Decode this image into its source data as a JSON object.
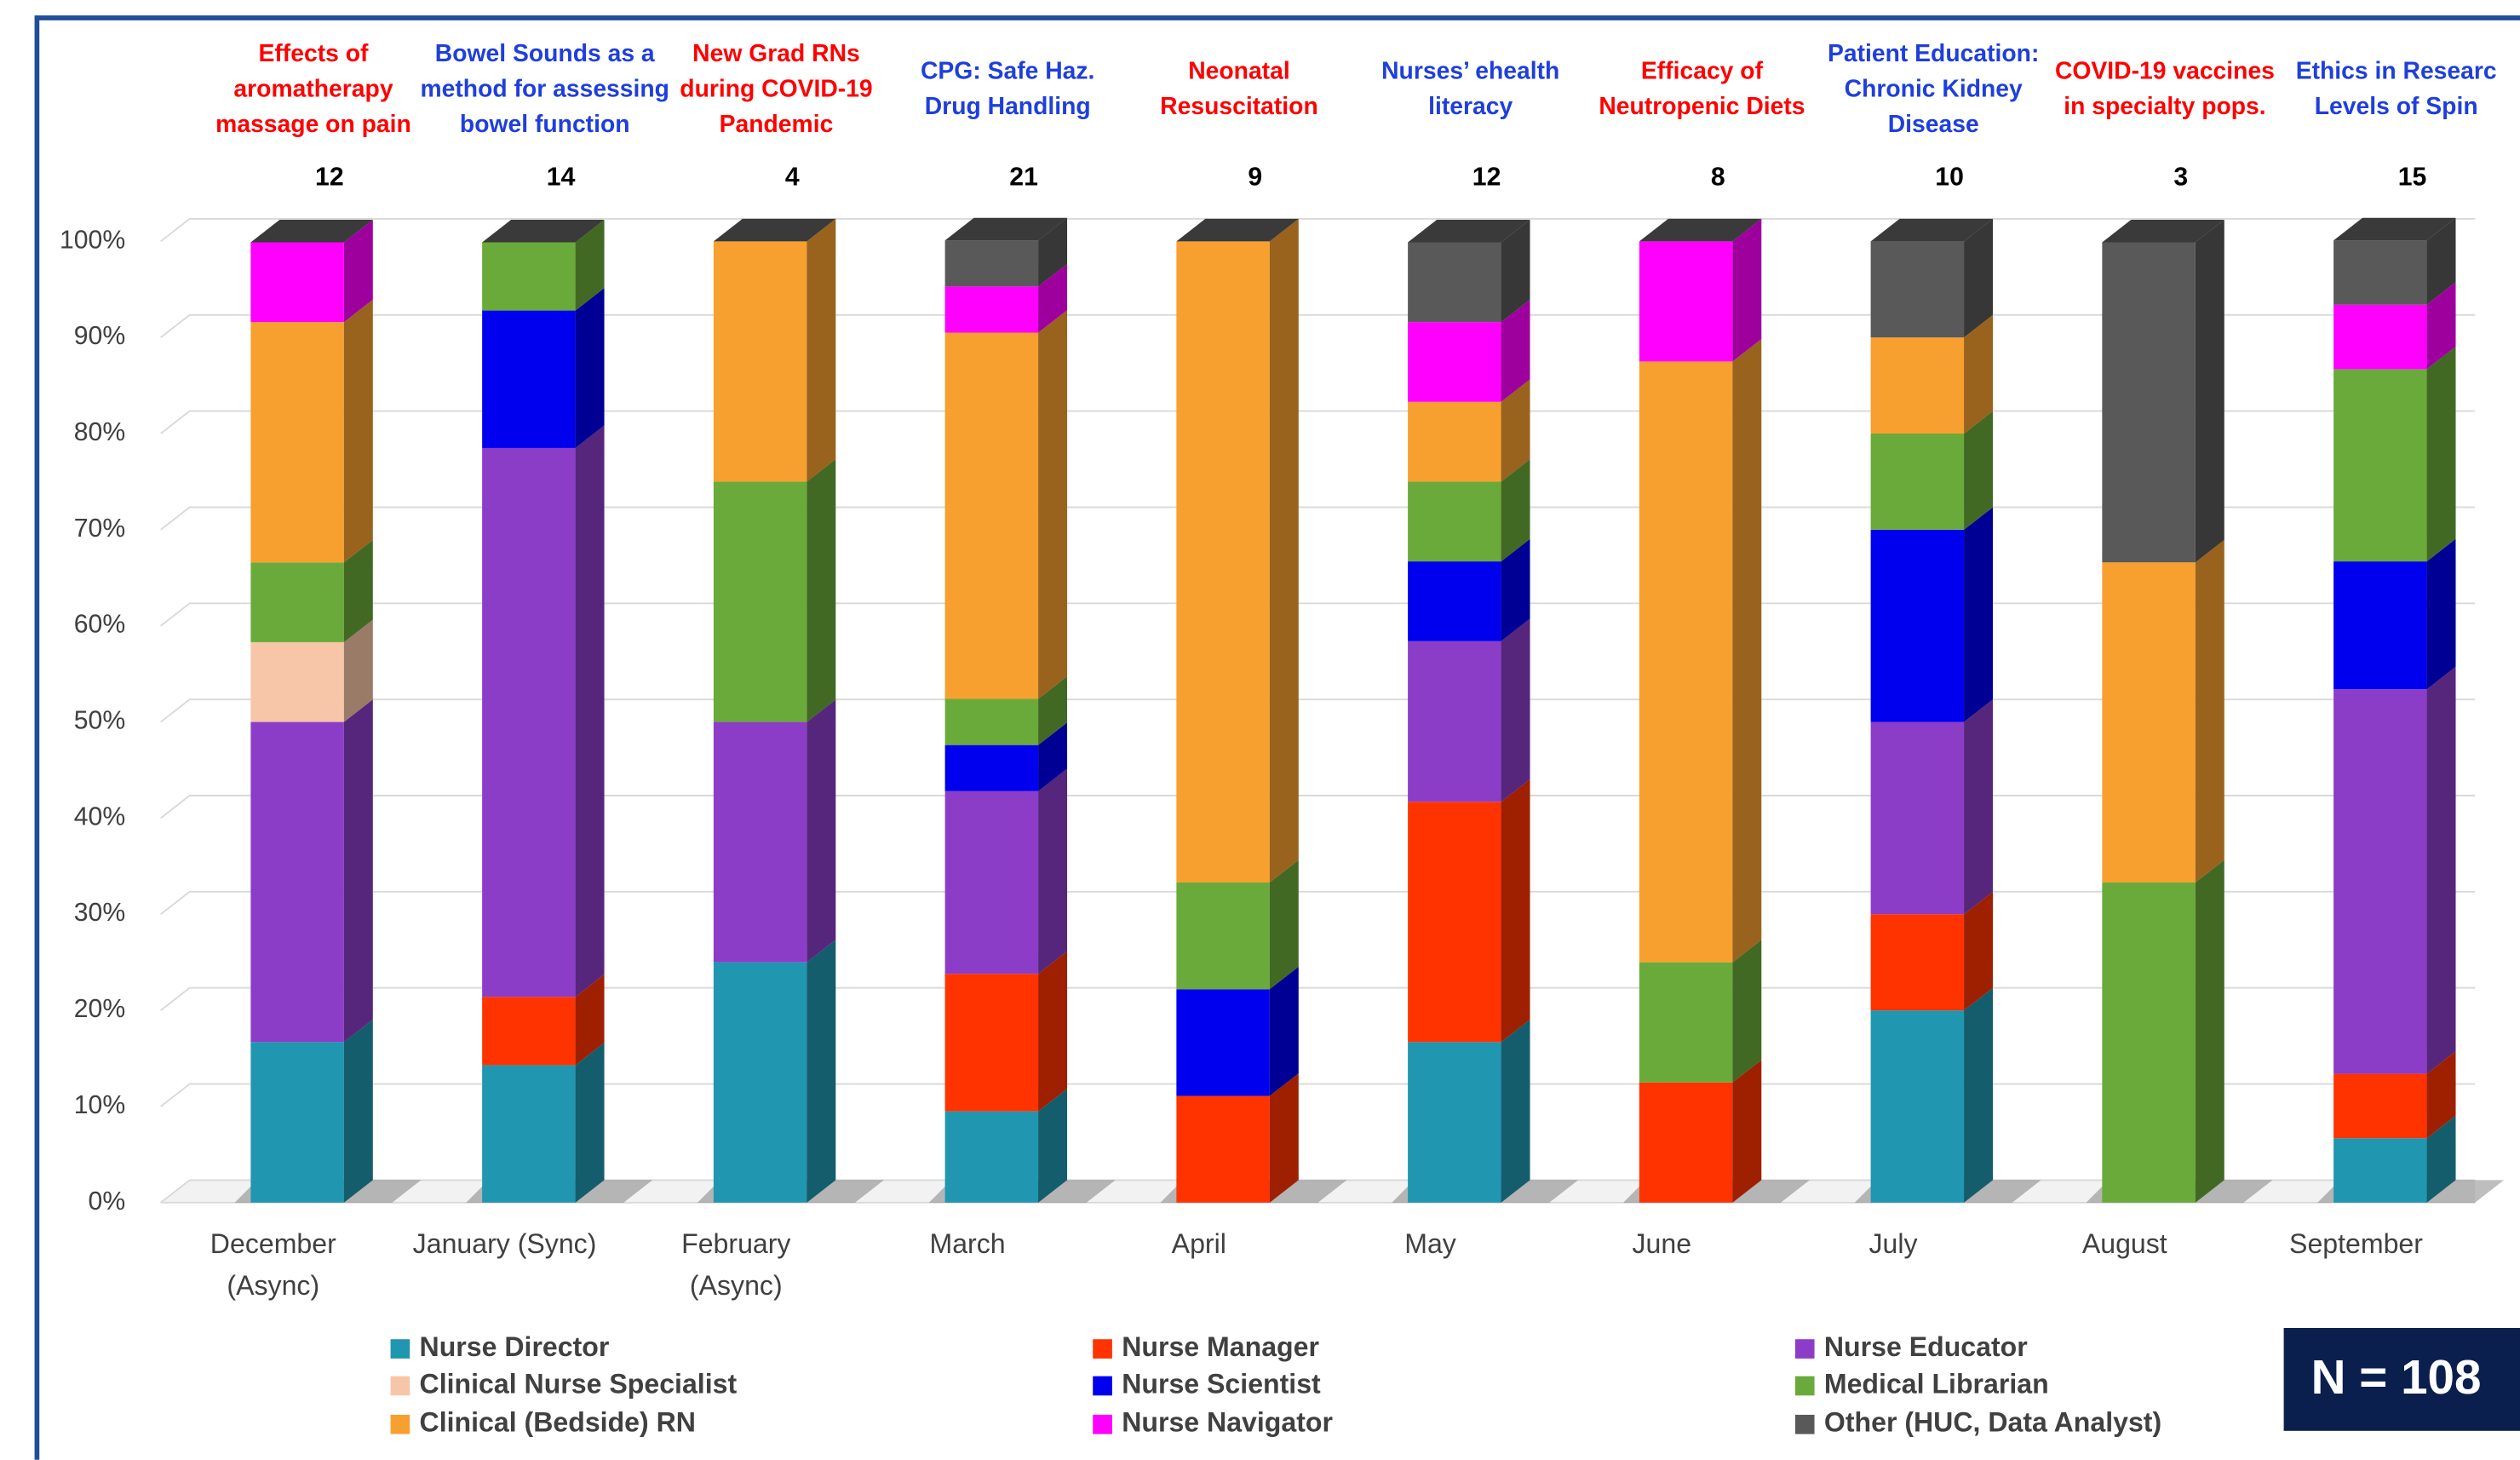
{
  "chart_data": {
    "type": "stacked_bar_3d",
    "categories": [
      "December (Async)",
      "January (Sync)",
      "February (Async)",
      "March",
      "April",
      "May",
      "June",
      "July",
      "August",
      "September"
    ],
    "counts": [
      12,
      14,
      4,
      21,
      9,
      12,
      8,
      10,
      3,
      15
    ],
    "annotations": [
      {
        "lines": [
          "Effects of",
          "aromatherapy",
          "massage on pain"
        ],
        "color": "#ff0000"
      },
      {
        "lines": [
          "Bowel Sounds as a",
          "method for assessing",
          "bowel function"
        ],
        "color": "#1f3fdc"
      },
      {
        "lines": [
          "New Grad RNs",
          "during COVID-19",
          "Pandemic"
        ],
        "color": "#ff0000"
      },
      {
        "lines": [
          "CPG: Safe Haz.",
          "Drug Handling"
        ],
        "color": "#1f3fdc"
      },
      {
        "lines": [
          "Neonatal",
          "Resuscitation"
        ],
        "color": "#ff0000"
      },
      {
        "lines": [
          "Nurses’ ehealth",
          "literacy"
        ],
        "color": "#1f3fdc"
      },
      {
        "lines": [
          "Efficacy of",
          "Neutropenic Diets"
        ],
        "color": "#ff0000"
      },
      {
        "lines": [
          "Patient Education:",
          "Chronic Kidney",
          "Disease"
        ],
        "color": "#1f3fdc"
      },
      {
        "lines": [
          "COVID-19 vaccines",
          "in specialty pops."
        ],
        "color": "#ff0000"
      },
      {
        "lines": [
          "Ethics in Researc",
          "Levels of Spin"
        ],
        "color": "#1f3fdc"
      }
    ],
    "series": [
      {
        "name": "Nurse Director",
        "color": "#2196b0",
        "values": [
          16.7,
          14.3,
          25,
          9.5,
          0,
          16.7,
          0,
          20,
          0,
          6.7
        ]
      },
      {
        "name": "Nurse Manager",
        "color": "#ff3300",
        "values": [
          0,
          7.1,
          0,
          14.3,
          11.1,
          25,
          12.5,
          10,
          0,
          6.7
        ]
      },
      {
        "name": "Nurse Educator",
        "color": "#8b3dc8",
        "values": [
          33.3,
          57.1,
          25,
          19,
          0,
          16.7,
          0,
          20,
          0,
          40
        ]
      },
      {
        "name": "Clinical Nurse Specialist",
        "color": "#f7c6a8",
        "values": [
          8.3,
          0,
          0,
          0,
          0,
          0,
          0,
          0,
          0,
          0
        ]
      },
      {
        "name": "Nurse Scientist",
        "color": "#0000ee",
        "values": [
          0,
          14.3,
          0,
          4.8,
          11.1,
          8.3,
          0,
          20,
          0,
          13.3
        ]
      },
      {
        "name": "Medical Librarian",
        "color": "#6aaa3a",
        "values": [
          8.3,
          7.1,
          25,
          4.8,
          11.1,
          8.3,
          12.5,
          10,
          33.3,
          20
        ]
      },
      {
        "name": "Clinical (Bedside) RN",
        "color": "#f7a030",
        "values": [
          25,
          0,
          25,
          38.1,
          66.7,
          8.3,
          62.5,
          10,
          33.3,
          0
        ]
      },
      {
        "name": "Nurse Navigator",
        "color": "#ff00ff",
        "values": [
          8.3,
          0,
          0,
          4.8,
          0,
          8.3,
          12.5,
          0,
          0,
          6.7
        ]
      },
      {
        "name": "Other (HUC, Data Analyst)",
        "color": "#595959",
        "values": [
          0,
          0,
          0,
          4.8,
          0,
          8.3,
          0,
          10,
          33.3,
          6.7
        ]
      }
    ],
    "ylim": [
      0,
      100
    ],
    "yticks": [
      {
        "value": 0,
        "label": "0%"
      },
      {
        "value": 10,
        "label": "10%"
      },
      {
        "value": 20,
        "label": "20%"
      },
      {
        "value": 30,
        "label": "30%"
      },
      {
        "value": 40,
        "label": "40%"
      },
      {
        "value": 50,
        "label": "50%"
      },
      {
        "value": 60,
        "label": "60%"
      },
      {
        "value": 70,
        "label": "70%"
      },
      {
        "value": 80,
        "label": "80%"
      },
      {
        "value": 90,
        "label": "90%"
      },
      {
        "value": 100,
        "label": "100%"
      }
    ],
    "grid": true,
    "note": "N = 108"
  }
}
